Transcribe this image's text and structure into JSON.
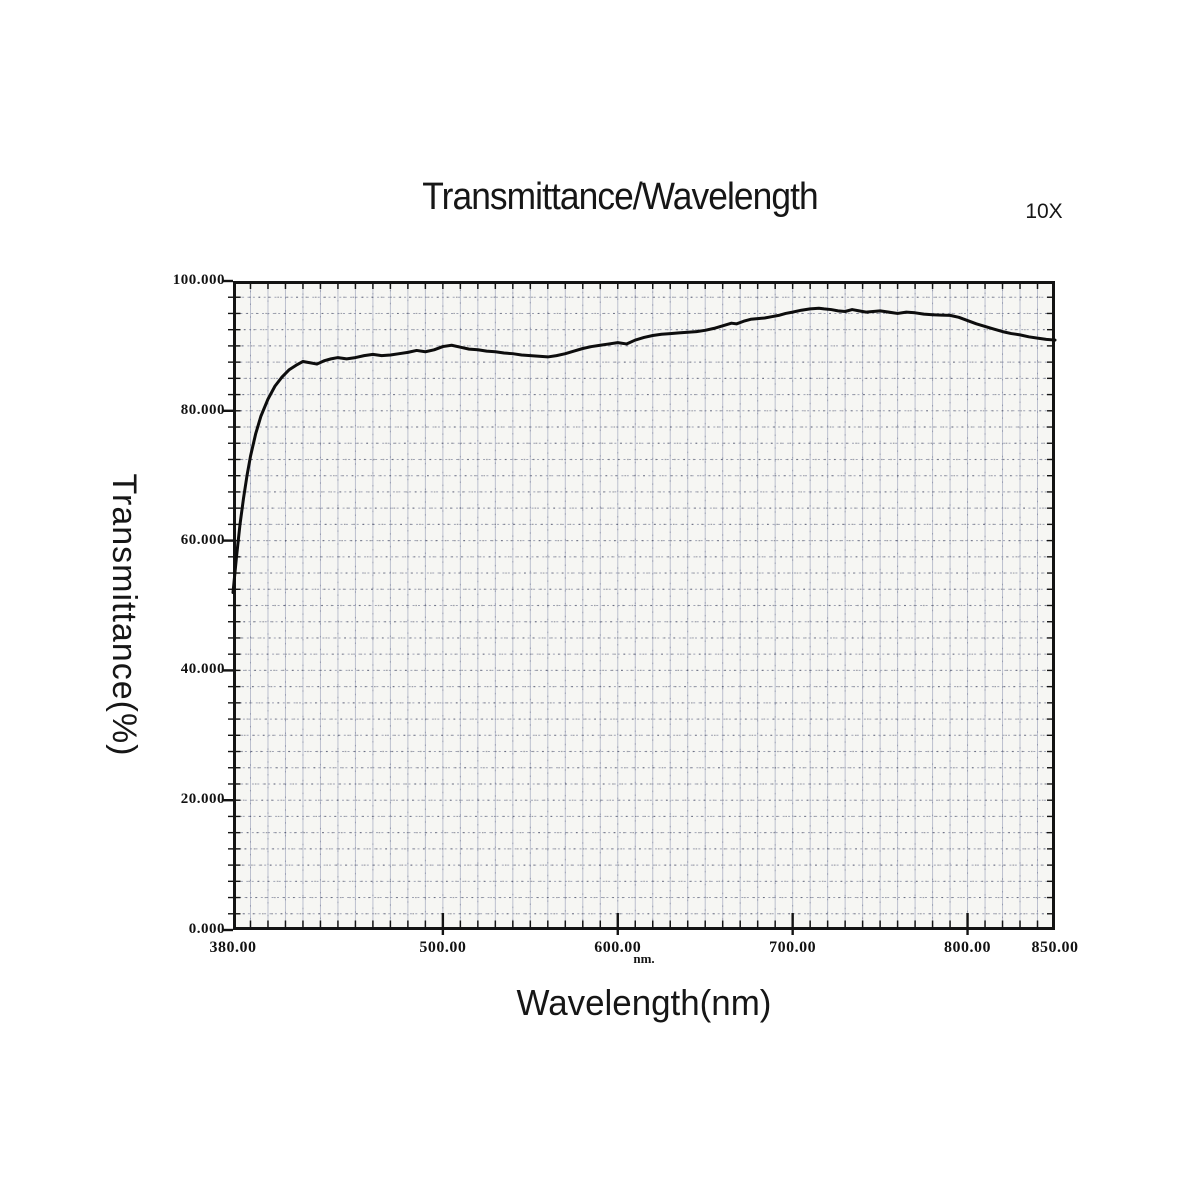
{
  "chart_data": {
    "type": "line",
    "title": "Transmittance/Wavelength",
    "annotation": "10X",
    "xlabel": "Wavelength(nm)",
    "ylabel": "Transmittance(%)",
    "x_unit_label": "nm.",
    "xlim": [
      380,
      850
    ],
    "ylim": [
      0,
      100
    ],
    "x_tick_values": [
      380,
      500,
      600,
      700,
      800,
      850
    ],
    "x_tick_labels": [
      "380.00",
      "500.00",
      "600.00",
      "700.00",
      "800.00",
      "850.00"
    ],
    "y_tick_values": [
      0,
      20,
      40,
      60,
      80,
      100
    ],
    "y_tick_labels": [
      "0.000",
      "20.000",
      "40.000",
      "60.000",
      "80.000",
      "100.000"
    ],
    "x_major_inner_tick_values": [
      500,
      600,
      700,
      800
    ],
    "x_minor_step": 10,
    "y_minor_step": 2.5,
    "grid": true,
    "legend_position": "none",
    "colors": {
      "curve": "#0d0d0d",
      "frame": "#131313",
      "tick": "#131313",
      "grid_vertical": "#aeb3c6",
      "grid_vertical_speckle": "#3a4166",
      "grid_horizontal": "#5a6282",
      "grid_horizontal_speckle": "#161b33",
      "paper": "#f6f6f3",
      "text": "#161616"
    },
    "series": [
      {
        "name": "Transmittance",
        "points": [
          [
            380,
            52.0
          ],
          [
            382,
            57.5
          ],
          [
            384,
            62.5
          ],
          [
            386,
            66.5
          ],
          [
            388,
            70.0
          ],
          [
            390,
            73.0
          ],
          [
            393,
            76.5
          ],
          [
            396,
            79.2
          ],
          [
            400,
            81.8
          ],
          [
            404,
            83.8
          ],
          [
            408,
            85.2
          ],
          [
            412,
            86.3
          ],
          [
            416,
            87.0
          ],
          [
            420,
            87.6
          ],
          [
            424,
            87.4
          ],
          [
            428,
            87.2
          ],
          [
            432,
            87.7
          ],
          [
            436,
            88.0
          ],
          [
            440,
            88.2
          ],
          [
            445,
            88.0
          ],
          [
            450,
            88.2
          ],
          [
            455,
            88.5
          ],
          [
            460,
            88.7
          ],
          [
            465,
            88.5
          ],
          [
            470,
            88.6
          ],
          [
            475,
            88.8
          ],
          [
            480,
            89.0
          ],
          [
            485,
            89.3
          ],
          [
            490,
            89.1
          ],
          [
            495,
            89.4
          ],
          [
            500,
            89.9
          ],
          [
            505,
            90.1
          ],
          [
            510,
            89.8
          ],
          [
            515,
            89.5
          ],
          [
            520,
            89.4
          ],
          [
            525,
            89.2
          ],
          [
            530,
            89.1
          ],
          [
            535,
            88.9
          ],
          [
            540,
            88.8
          ],
          [
            545,
            88.6
          ],
          [
            550,
            88.5
          ],
          [
            555,
            88.4
          ],
          [
            560,
            88.3
          ],
          [
            565,
            88.5
          ],
          [
            570,
            88.8
          ],
          [
            575,
            89.2
          ],
          [
            580,
            89.6
          ],
          [
            585,
            89.9
          ],
          [
            590,
            90.1
          ],
          [
            595,
            90.3
          ],
          [
            600,
            90.5
          ],
          [
            605,
            90.3
          ],
          [
            610,
            90.9
          ],
          [
            615,
            91.3
          ],
          [
            620,
            91.6
          ],
          [
            625,
            91.8
          ],
          [
            630,
            91.9
          ],
          [
            635,
            92.0
          ],
          [
            640,
            92.1
          ],
          [
            645,
            92.2
          ],
          [
            650,
            92.4
          ],
          [
            655,
            92.7
          ],
          [
            660,
            93.1
          ],
          [
            665,
            93.5
          ],
          [
            668,
            93.4
          ],
          [
            672,
            93.8
          ],
          [
            676,
            94.1
          ],
          [
            680,
            94.2
          ],
          [
            684,
            94.3
          ],
          [
            688,
            94.5
          ],
          [
            692,
            94.7
          ],
          [
            696,
            95.0
          ],
          [
            700,
            95.2
          ],
          [
            705,
            95.5
          ],
          [
            710,
            95.7
          ],
          [
            715,
            95.8
          ],
          [
            718,
            95.7
          ],
          [
            722,
            95.6
          ],
          [
            726,
            95.4
          ],
          [
            730,
            95.3
          ],
          [
            734,
            95.6
          ],
          [
            738,
            95.4
          ],
          [
            742,
            95.2
          ],
          [
            746,
            95.3
          ],
          [
            750,
            95.4
          ],
          [
            755,
            95.2
          ],
          [
            760,
            95.0
          ],
          [
            765,
            95.2
          ],
          [
            770,
            95.1
          ],
          [
            775,
            94.9
          ],
          [
            780,
            94.8
          ],
          [
            785,
            94.75
          ],
          [
            790,
            94.7
          ],
          [
            795,
            94.4
          ],
          [
            800,
            93.9
          ],
          [
            805,
            93.4
          ],
          [
            810,
            93.0
          ],
          [
            815,
            92.6
          ],
          [
            820,
            92.2
          ],
          [
            825,
            91.9
          ],
          [
            830,
            91.7
          ],
          [
            835,
            91.4
          ],
          [
            840,
            91.2
          ],
          [
            845,
            91.0
          ],
          [
            850,
            90.9
          ]
        ]
      }
    ]
  },
  "layout_note": ""
}
